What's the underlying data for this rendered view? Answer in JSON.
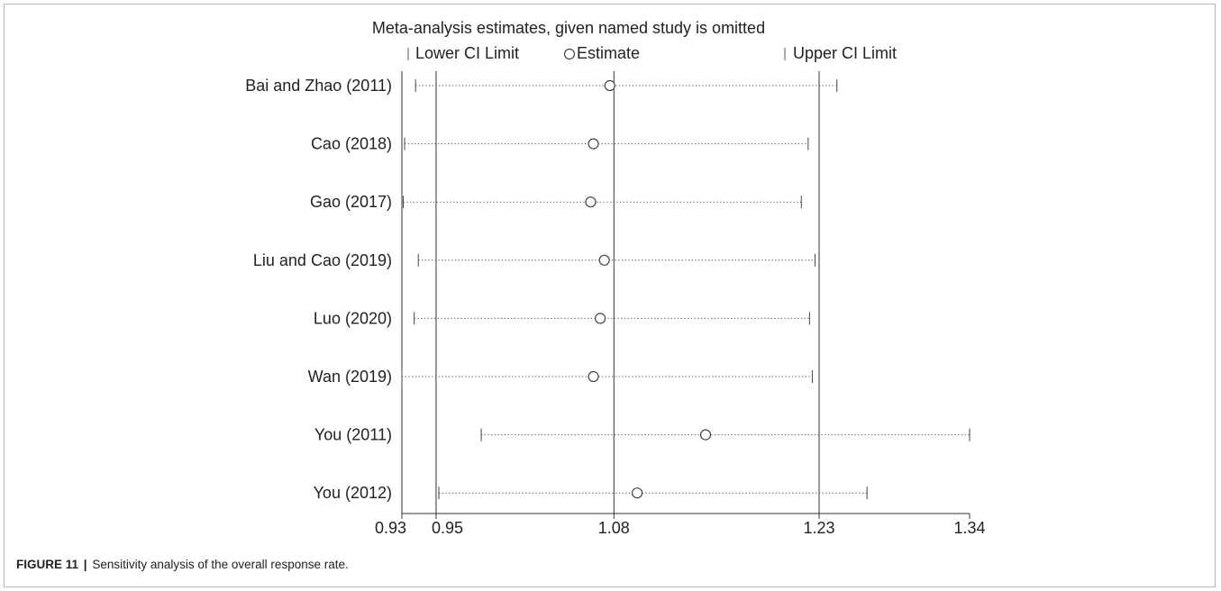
{
  "chart_data": {
    "type": "forest-sensitivity",
    "title": "Meta-analysis estimates, given named study is omitted",
    "legend": {
      "lower": "Lower CI Limit",
      "estimate": "Estimate",
      "upper": "Upper CI Limit",
      "placement": "top"
    },
    "studies": [
      {
        "label": "Bai and Zhao (2011)",
        "lower": 0.935,
        "estimate": 1.077,
        "upper": 1.243
      },
      {
        "label": "Cao (2018)",
        "lower": 0.927,
        "estimate": 1.065,
        "upper": 1.222
      },
      {
        "label": "Gao (2017)",
        "lower": 0.926,
        "estimate": 1.063,
        "upper": 1.217
      },
      {
        "label": "Liu and Cao (2019)",
        "lower": 0.937,
        "estimate": 1.073,
        "upper": 1.227
      },
      {
        "label": "Luo (2020)",
        "lower": 0.934,
        "estimate": 1.07,
        "upper": 1.223
      },
      {
        "label": "Wan (2019)",
        "lower": 0.925,
        "estimate": 1.065,
        "upper": 1.225
      },
      {
        "label": "You (2011)",
        "lower": 0.983,
        "estimate": 1.147,
        "upper": 1.34
      },
      {
        "label": "You (2012)",
        "lower": 0.952,
        "estimate": 1.097,
        "upper": 1.265
      }
    ],
    "xaxis": {
      "min": 0.925,
      "max": 1.34,
      "ticks": [
        {
          "value": 0.925,
          "label": "0.93"
        },
        {
          "value": 0.95,
          "label": "0.95"
        },
        {
          "value": 1.08,
          "label": "1.08"
        },
        {
          "value": 1.23,
          "label": "1.23"
        },
        {
          "value": 1.34,
          "label": "1.34"
        }
      ]
    },
    "reference_lines": [
      0.95,
      1.08,
      1.23
    ]
  },
  "caption": {
    "figure": "FIGURE 11",
    "separator": "|",
    "text": "Sensitivity analysis of the overall response rate."
  }
}
